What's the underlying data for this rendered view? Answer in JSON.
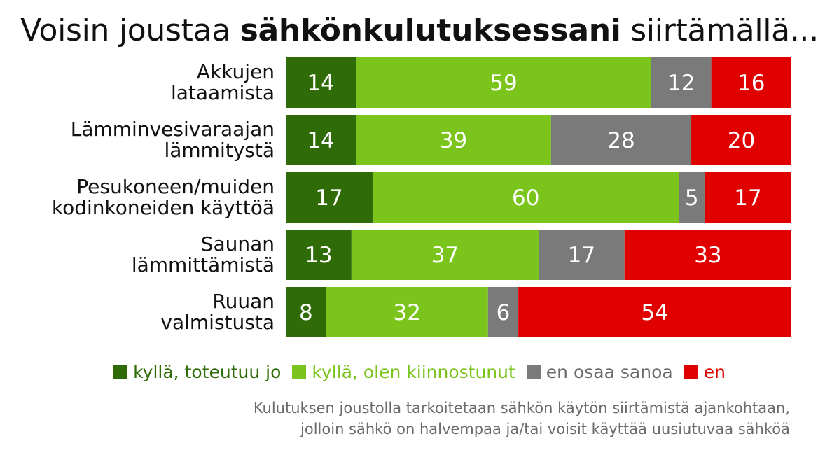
{
  "title": {
    "pre": "Voisin joustaa ",
    "bold": "sähkönkulutuksessani",
    "post": " siirtämällä..."
  },
  "chart_data": {
    "type": "bar",
    "stacked": true,
    "orientation": "horizontal",
    "categories": [
      [
        "Akkujen",
        "lataamista"
      ],
      [
        "Lämminvesivaraajan",
        "lämmitystä"
      ],
      [
        "Pesukoneen/muiden",
        "kodinkoneiden käyttöä"
      ],
      [
        "Saunan",
        "lämmittämistä"
      ],
      [
        "Ruuan",
        "valmistusta"
      ]
    ],
    "series": [
      {
        "name": "kyllä, toteutuu jo",
        "color": "#2f6b06",
        "values": [
          14,
          14,
          17,
          13,
          8
        ]
      },
      {
        "name": "kyllä, olen kiinnostunut",
        "color": "#7ac41b",
        "values": [
          59,
          39,
          60,
          37,
          32
        ]
      },
      {
        "name": "en osaa sanoa",
        "color": "#7a7a7a",
        "values": [
          12,
          28,
          5,
          17,
          6
        ]
      },
      {
        "name": "en",
        "color": "#e00000",
        "values": [
          16,
          20,
          17,
          33,
          54
        ]
      }
    ],
    "legend_position": "bottom",
    "grid": false
  },
  "note": [
    "Kulutuksen joustolla tarkoitetaan sähkön käytön siirtämistä ajankohtaan,",
    "jolloin sähkö on halvempaa ja/tai voisit käyttää uusiutuvaa sähköä"
  ]
}
